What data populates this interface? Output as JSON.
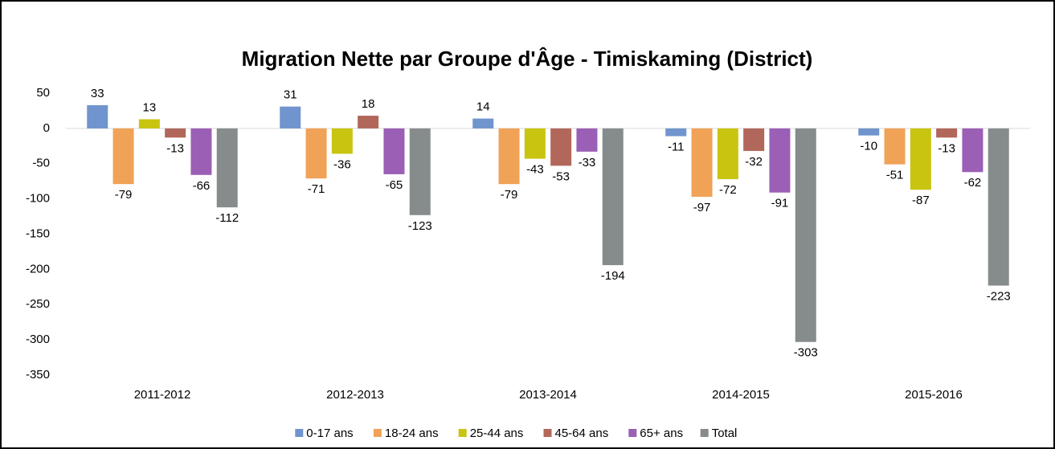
{
  "chart_data": {
    "type": "bar",
    "title": "Migration Nette par Groupe d'Âge - Timiskaming (District)",
    "categories": [
      "2011-2012",
      "2012-2013",
      "2013-2014",
      "2014-2015",
      "2015-2016"
    ],
    "series": [
      {
        "name": "0-17 ans",
        "color": "#7094cd",
        "values": [
          33,
          31,
          14,
          -11,
          -10
        ]
      },
      {
        "name": "18-24 ans",
        "color": "#f0a257",
        "values": [
          -79,
          -71,
          -79,
          -97,
          -51
        ]
      },
      {
        "name": "25-44 ans",
        "color": "#c9c40f",
        "values": [
          13,
          -36,
          -43,
          -72,
          -87
        ]
      },
      {
        "name": "45-64 ans",
        "color": "#b2675b",
        "values": [
          -13,
          18,
          -53,
          -32,
          -13
        ]
      },
      {
        "name": "65+ ans",
        "color": "#9b5fb5",
        "values": [
          -66,
          -65,
          -33,
          -91,
          -62
        ]
      },
      {
        "name": "Total",
        "color": "#868c8c",
        "values": [
          -112,
          -123,
          -194,
          -303,
          -223
        ]
      }
    ],
    "ylim": [
      -350,
      50
    ],
    "yticks": [
      50,
      0,
      -50,
      -100,
      -150,
      -200,
      -250,
      -300,
      -350
    ],
    "grid": false,
    "legend": "bottom"
  }
}
